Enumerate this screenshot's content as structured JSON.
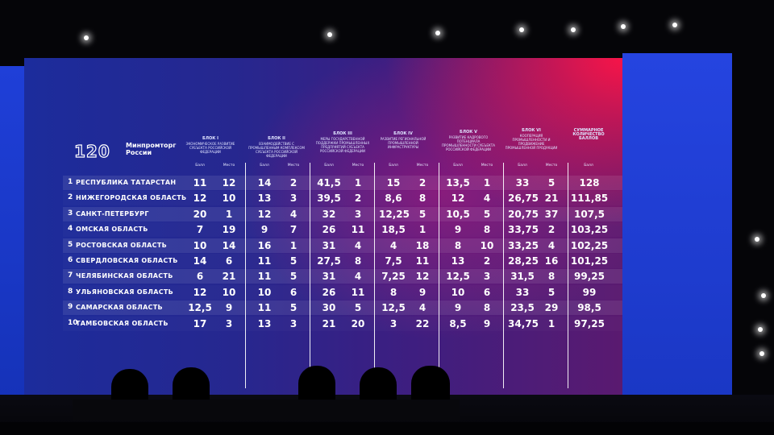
{
  "logo": {
    "number": "120",
    "line1": "Минпромторг",
    "line2": "России"
  },
  "blocks": [
    {
      "title": "Блок I",
      "desc": "Экономическое развитие субъекта Российской Федерации"
    },
    {
      "title": "Блок II",
      "desc": "Взаимодействие с промышленным комплексом субъекта Российской Федерации"
    },
    {
      "title": "Блок III",
      "desc": "Меры государственной поддержки промышленных предприятий субъекта Российской Федерации"
    },
    {
      "title": "Блок IV",
      "desc": "Развитие региональной промышленной инфраструктуры"
    },
    {
      "title": "Блок V",
      "desc": "Развитие кадрового потенциала промышленности субъекта Российской Федерации"
    },
    {
      "title": "Блок VI",
      "desc": "Кооперация промышленности и продвижение промышленной продукции"
    }
  ],
  "total_header": "Суммарное количество баллов",
  "sub_score": "Балл",
  "sub_place": "Место",
  "sub_total": "Балл",
  "rows": [
    {
      "rank": "1",
      "region": "Республика Татарстан",
      "v": [
        "11",
        "12",
        "14",
        "2",
        "41,5",
        "1",
        "15",
        "2",
        "13,5",
        "1",
        "33",
        "5"
      ],
      "total": "128"
    },
    {
      "rank": "2",
      "region": "Нижегородская область",
      "v": [
        "12",
        "10",
        "13",
        "3",
        "39,5",
        "2",
        "8,6",
        "8",
        "12",
        "4",
        "26,75",
        "21"
      ],
      "total": "111,85"
    },
    {
      "rank": "3",
      "region": "Санкт-Петербург",
      "v": [
        "20",
        "1",
        "12",
        "4",
        "32",
        "3",
        "12,25",
        "5",
        "10,5",
        "5",
        "20,75",
        "37"
      ],
      "total": "107,5"
    },
    {
      "rank": "4",
      "region": "Омская область",
      "v": [
        "7",
        "19",
        "9",
        "7",
        "26",
        "11",
        "18,5",
        "1",
        "9",
        "8",
        "33,75",
        "2"
      ],
      "total": "103,25"
    },
    {
      "rank": "5",
      "region": "Ростовская область",
      "v": [
        "10",
        "14",
        "16",
        "1",
        "31",
        "4",
        "4",
        "18",
        "8",
        "10",
        "33,25",
        "4"
      ],
      "total": "102,25"
    },
    {
      "rank": "6",
      "region": "Свердловская область",
      "v": [
        "14",
        "6",
        "11",
        "5",
        "27,5",
        "8",
        "7,5",
        "11",
        "13",
        "2",
        "28,25",
        "16"
      ],
      "total": "101,25"
    },
    {
      "rank": "7",
      "region": "Челябинская область",
      "v": [
        "6",
        "21",
        "11",
        "5",
        "31",
        "4",
        "7,25",
        "12",
        "12,5",
        "3",
        "31,5",
        "8"
      ],
      "total": "99,25"
    },
    {
      "rank": "8",
      "region": "Ульяновская область",
      "v": [
        "12",
        "10",
        "10",
        "6",
        "26",
        "11",
        "8",
        "9",
        "10",
        "6",
        "33",
        "5"
      ],
      "total": "99"
    },
    {
      "rank": "9",
      "region": "Самарская область",
      "v": [
        "12,5",
        "9",
        "11",
        "5",
        "30",
        "5",
        "12,5",
        "4",
        "9",
        "8",
        "23,5",
        "29"
      ],
      "total": "98,5"
    },
    {
      "rank": "10",
      "region": "Тамбовская область",
      "v": [
        "17",
        "3",
        "13",
        "3",
        "21",
        "20",
        "3",
        "22",
        "8,5",
        "9",
        "34,75",
        "1"
      ],
      "total": "97,25"
    }
  ]
}
